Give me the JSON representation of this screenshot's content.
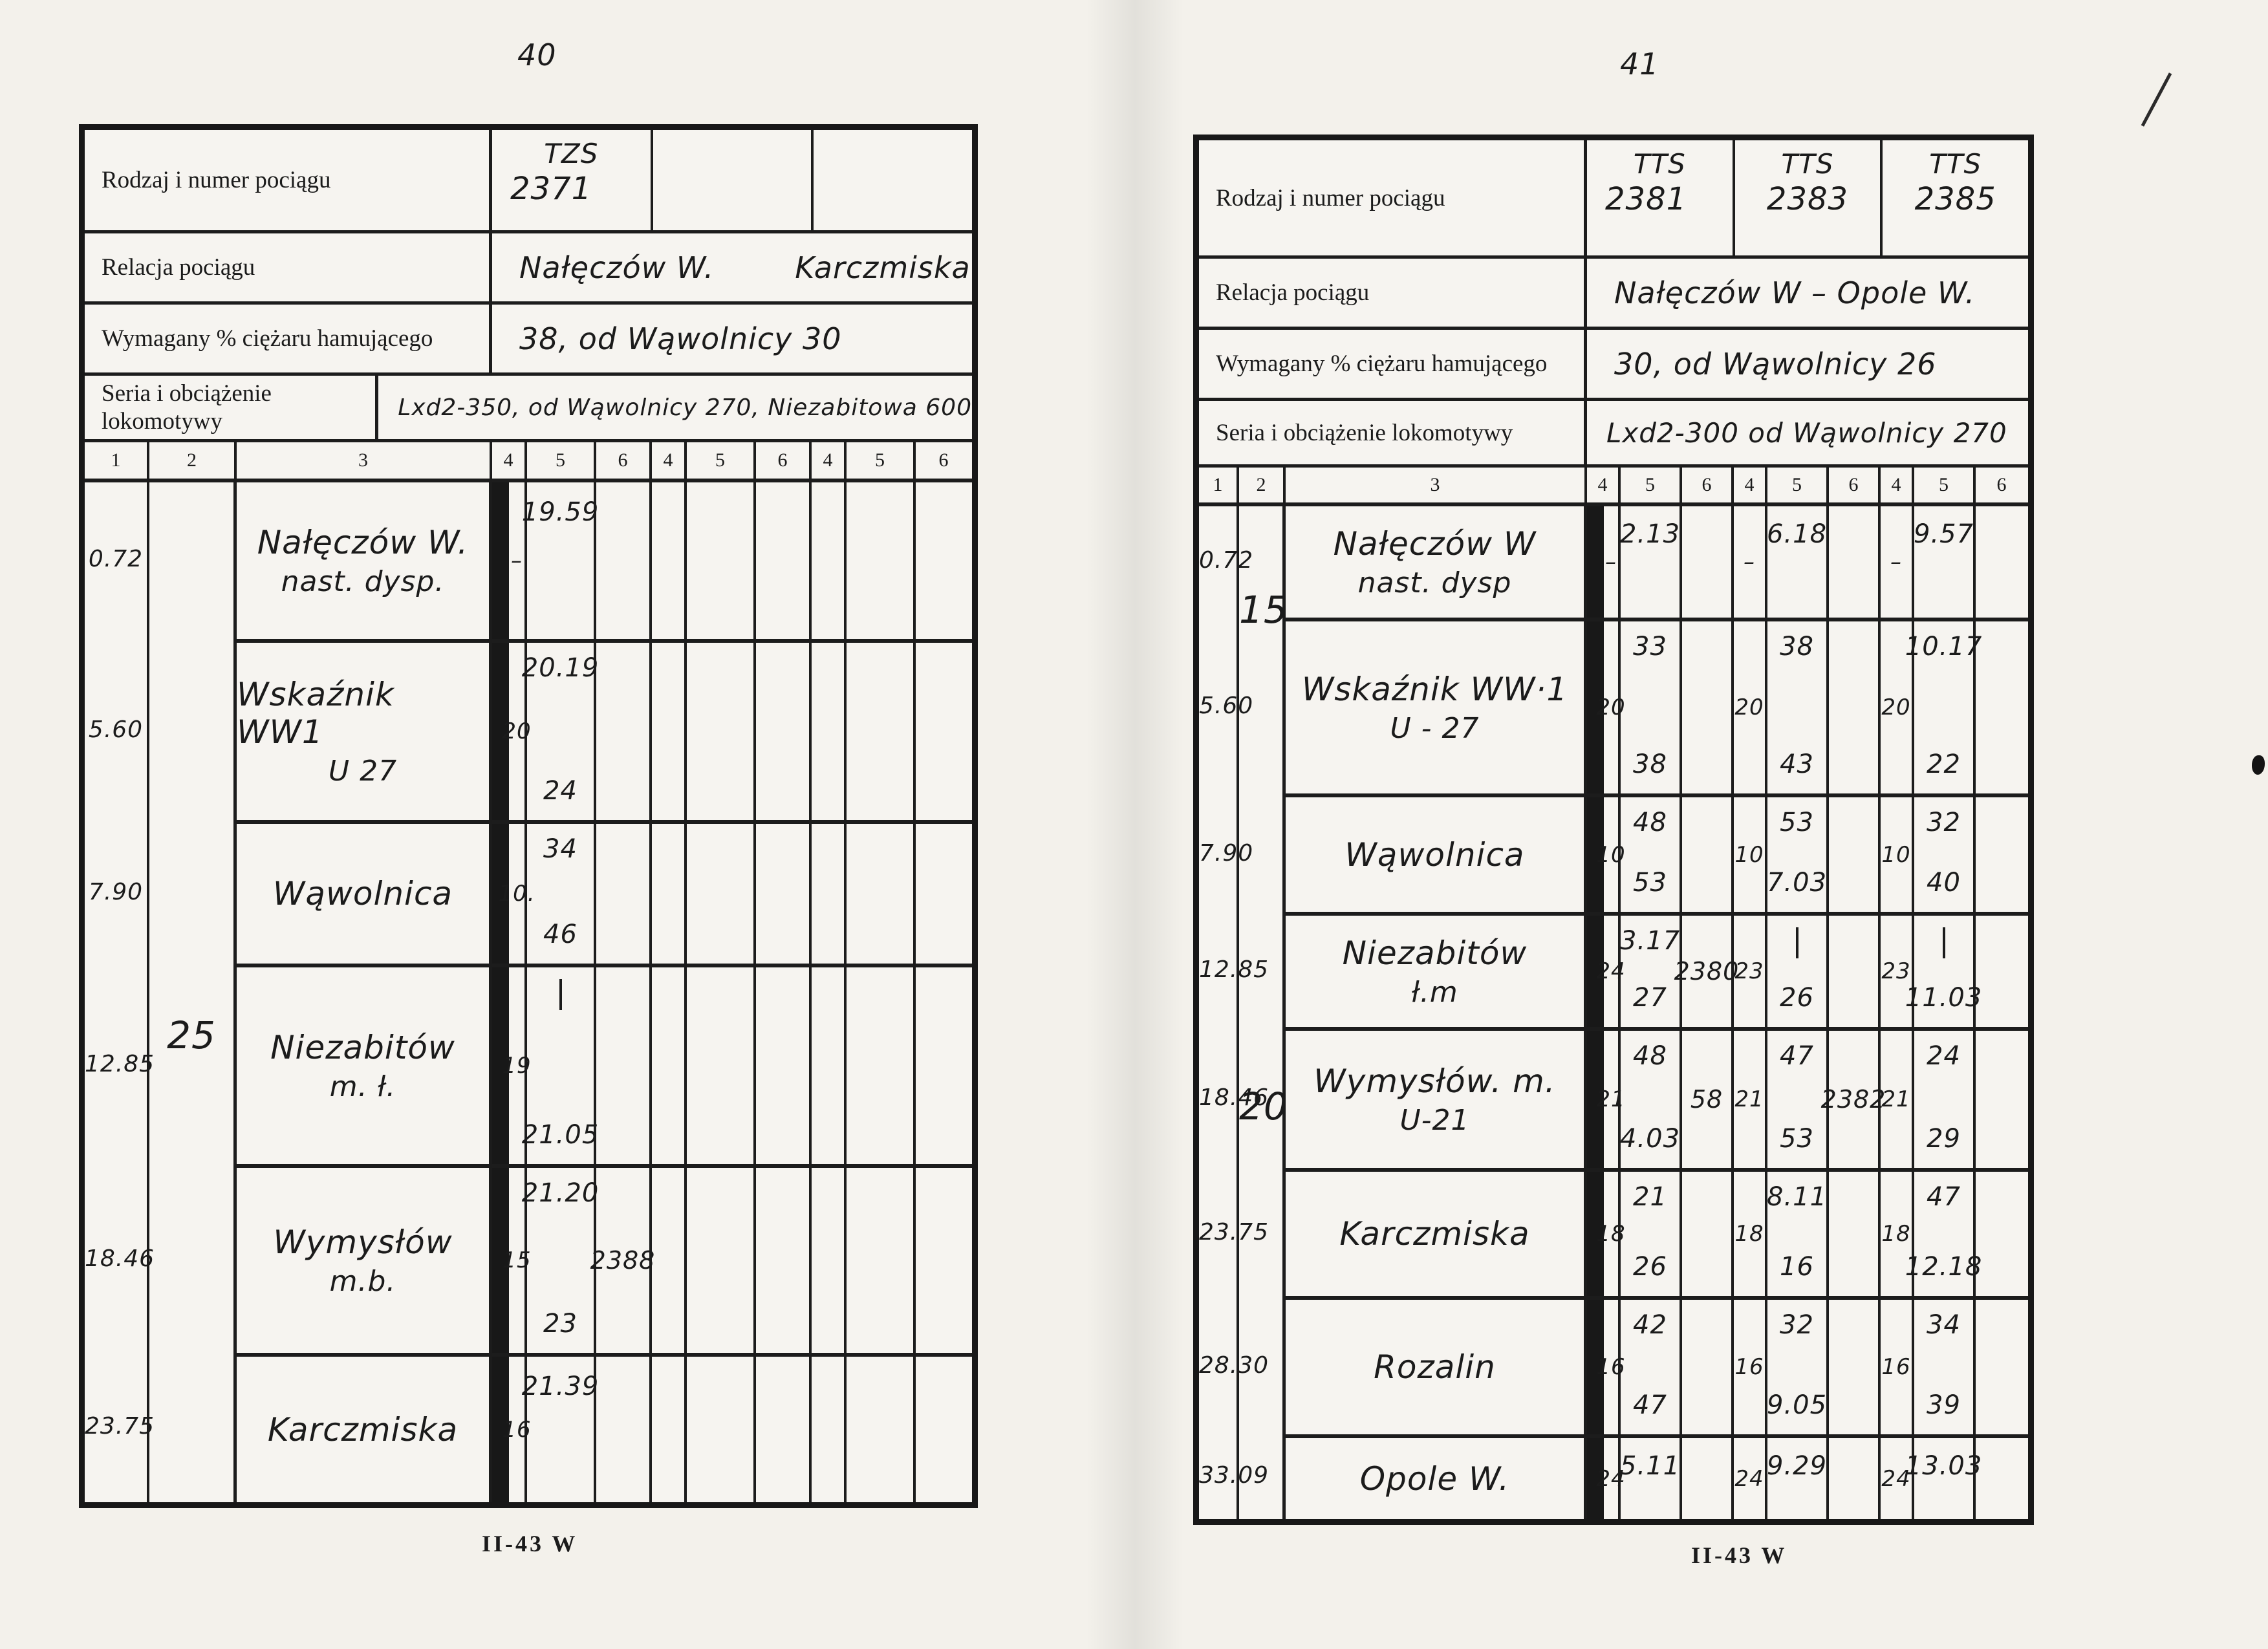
{
  "labels": {
    "train": "Rodzaj i numer pociągu",
    "relation": "Relacja pociągu",
    "brake": "Wymagany % ciężaru hamującego",
    "loco": "Seria i obciążenie lokomotywy",
    "cols_left": [
      "1",
      "2",
      "3"
    ],
    "cols_group": [
      "4",
      "5",
      "6"
    ]
  },
  "footer_code": "II-43 W",
  "left": {
    "page_number": "40",
    "trains": [
      {
        "type": "TZS",
        "number": "2371"
      },
      {
        "type": "",
        "number": ""
      },
      {
        "type": "",
        "number": ""
      }
    ],
    "relation": "Nałęczów W.        Karczmiska",
    "brake": "38, od Wąwolnicy 30",
    "loco": "Lxd2-350, od Wąwolnicy 270, Niezabitowa 600",
    "speed_marks": [
      {
        "text": "25",
        "at": 0.545
      }
    ],
    "rows": [
      {
        "km": "0.72",
        "station": "Nałęczów W.",
        "station2": "nast. dysp.",
        "cells": [
          {
            "c4": "–",
            "c5a": "19.59",
            "c5b": "",
            "c6": ""
          },
          {},
          {}
        ]
      },
      {
        "km": "5.60",
        "station": "Wskaźnik WW1",
        "station2": "U 27",
        "cells": [
          {
            "c4": "20",
            "c5a": "20.19",
            "c5b": "24",
            "c6": ""
          },
          {},
          {}
        ]
      },
      {
        "km": "7.90",
        "station": "Wąwolnica",
        "station2": "",
        "cells": [
          {
            "c4": "10.",
            "c5a": "34",
            "c5b": "46",
            "c6": ""
          },
          {},
          {}
        ]
      },
      {
        "km": "12.85",
        "station": "Niezabitów",
        "station2": "m. ł.",
        "cells": [
          {
            "c4": "19",
            "c5a": "|",
            "c5b": "21.05",
            "c6": ""
          },
          {},
          {}
        ]
      },
      {
        "km": "18.46",
        "station": "Wymysłów",
        "station2": "m.b.",
        "cells": [
          {
            "c4": "15",
            "c5a": "21.20",
            "c5b": "23",
            "c6": "2388"
          },
          {},
          {}
        ]
      },
      {
        "km": "23.75",
        "station": "Karczmiska",
        "station2": "",
        "cells": [
          {
            "c4": "16",
            "c5a": "21.39",
            "c5b": "",
            "c6": ""
          },
          {},
          {}
        ]
      }
    ]
  },
  "right": {
    "page_number": "41",
    "trains": [
      {
        "type": "TTS",
        "number": "2381"
      },
      {
        "type": "TTS",
        "number": "2383"
      },
      {
        "type": "TTS",
        "number": "2385"
      }
    ],
    "relation": "Nałęczów W – Opole W.",
    "brake": "30, od Wąwolnicy 26",
    "loco": "Lxd2-300 od Wąwolnicy 270",
    "speed_marks": [
      {
        "text": "15",
        "at": 0.105
      },
      {
        "text": "20",
        "at": 0.595
      }
    ],
    "rows": [
      {
        "km": "0.72",
        "station": "Nałęczów W",
        "station2": "nast. dysp",
        "cells": [
          {
            "c4": "–",
            "c5a": "2.13"
          },
          {
            "c4": "–",
            "c5a": "6.18"
          },
          {
            "c4": "–",
            "c5a": "9.57"
          }
        ]
      },
      {
        "km": "5.60",
        "station": "Wskaźnik WW·1",
        "station2": "U - 27",
        "cells": [
          {
            "c4": "20",
            "c5a": "33",
            "c5b": "38"
          },
          {
            "c4": "20",
            "c5a": "38",
            "c5b": "43"
          },
          {
            "c4": "20",
            "c5a": "10.17",
            "c5b": "22"
          }
        ]
      },
      {
        "km": "7.90",
        "station": "Wąwolnica",
        "station2": "",
        "cells": [
          {
            "c4": "10",
            "c5a": "48",
            "c5b": "53"
          },
          {
            "c4": "10",
            "c5a": "53",
            "c5b": "7.03"
          },
          {
            "c4": "10",
            "c5a": "32",
            "c5b": "40"
          }
        ]
      },
      {
        "km": "12.85",
        "station": "Niezabitów",
        "station2": "ł.m",
        "cells": [
          {
            "c4": "24",
            "c5a": "3.17",
            "c5b": "27",
            "c6": "2380"
          },
          {
            "c4": "23",
            "c5a": "|",
            "c5b": "26"
          },
          {
            "c4": "23",
            "c5a": "|",
            "c5b": "11.03"
          }
        ]
      },
      {
        "km": "18.46",
        "station": "Wymysłów. m.",
        "station2": "U-21",
        "cells": [
          {
            "c4": "21",
            "c5a": "48",
            "c5b": "4.03",
            "c6": "58"
          },
          {
            "c4": "21",
            "c5a": "47",
            "c5b": "53",
            "c6": "2382"
          },
          {
            "c4": "21",
            "c5a": "24",
            "c5b": "29"
          }
        ]
      },
      {
        "km": "23.75",
        "station": "Karczmiska",
        "station2": "",
        "cells": [
          {
            "c4": "18",
            "c5a": "21",
            "c5b": "26"
          },
          {
            "c4": "18",
            "c5a": "8.11",
            "c5b": "16"
          },
          {
            "c4": "18",
            "c5a": "47",
            "c5b": "12.18"
          }
        ]
      },
      {
        "km": "28.30",
        "station": "Rozalin",
        "station2": "",
        "cells": [
          {
            "c4": "16",
            "c5a": "42",
            "c5b": "47"
          },
          {
            "c4": "16",
            "c5a": "32",
            "c5b": "9.05"
          },
          {
            "c4": "16",
            "c5a": "34",
            "c5b": "39"
          }
        ]
      },
      {
        "km": "33.09",
        "station": "Opole W.",
        "station2": "",
        "cells": [
          {
            "c4": "24",
            "c5a": "5.11"
          },
          {
            "c4": "24",
            "c5a": "9.29"
          },
          {
            "c4": "24",
            "c5a": "13.03"
          }
        ]
      }
    ]
  }
}
